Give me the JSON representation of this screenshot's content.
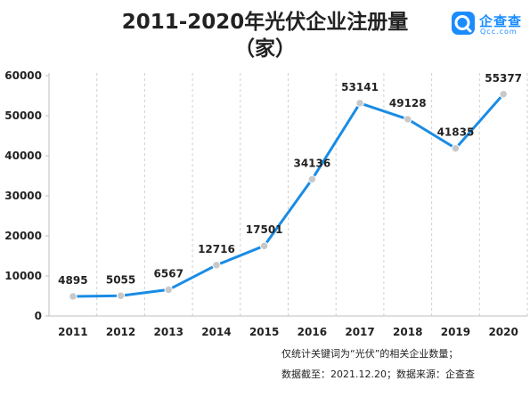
{
  "title_line1": "2011-2020年光伏企业注册量",
  "title_line2": "（家）",
  "logo": {
    "name": "企查查",
    "domain": "Qcc.com",
    "brand_color": "#1a8cff"
  },
  "footnote": {
    "line1": "仅统计关键词为“光伏”的相关企业数量；",
    "line2": "数据截至：2021.12.20；数据来源：企查查"
  },
  "chart_data": {
    "type": "line",
    "categories": [
      "2011",
      "2012",
      "2013",
      "2014",
      "2015",
      "2016",
      "2017",
      "2018",
      "2019",
      "2020"
    ],
    "values": [
      4895,
      5055,
      6567,
      12716,
      17501,
      34136,
      53141,
      49128,
      41835,
      55377
    ],
    "data_labels": [
      "4895",
      "5055",
      "6567",
      "12716",
      "17501",
      "34136",
      "53141",
      "49128",
      "41835",
      "55377"
    ],
    "y_ticks": [
      "0",
      "10000",
      "20000",
      "30000",
      "40000",
      "50000",
      "60000"
    ],
    "ylim": [
      0,
      60000
    ],
    "line_color": "#1a8ce5",
    "marker_color": "#c8c8c8",
    "grid": "vertical dashed lines",
    "legend": "none"
  }
}
